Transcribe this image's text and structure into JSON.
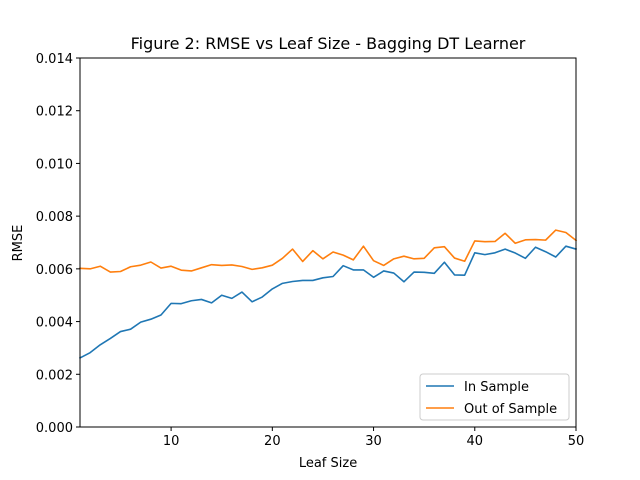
{
  "chart_data": {
    "type": "line",
    "title": "Figure 2: RMSE vs Leaf Size - Bagging DT Learner",
    "xlabel": "Leaf Size",
    "ylabel": "RMSE",
    "xlim": [
      1,
      50
    ],
    "ylim": [
      0,
      0.014
    ],
    "x_ticks": [
      10,
      20,
      30,
      40,
      50
    ],
    "x_tick_labels": [
      "10",
      "20",
      "30",
      "40",
      "50"
    ],
    "y_ticks": [
      0,
      0.002,
      0.004,
      0.006,
      0.008,
      0.01,
      0.012,
      0.014
    ],
    "y_tick_labels": [
      "0.000",
      "0.002",
      "0.004",
      "0.006",
      "0.008",
      "0.010",
      "0.012",
      "0.014"
    ],
    "grid": false,
    "legend_position": "lower-right",
    "x": [
      1,
      2,
      3,
      4,
      5,
      6,
      7,
      8,
      9,
      10,
      11,
      12,
      13,
      14,
      15,
      16,
      17,
      18,
      19,
      20,
      21,
      22,
      23,
      24,
      25,
      26,
      27,
      28,
      29,
      30,
      31,
      32,
      33,
      34,
      35,
      36,
      37,
      38,
      39,
      40,
      41,
      42,
      43,
      44,
      45,
      46,
      47,
      48,
      49,
      50
    ],
    "series": [
      {
        "name": "In Sample",
        "color": "#1f77b4",
        "values": [
          0.00262,
          0.00282,
          0.00312,
          0.00336,
          0.00362,
          0.00371,
          0.00398,
          0.00409,
          0.00425,
          0.00469,
          0.00468,
          0.00479,
          0.00484,
          0.00471,
          0.005,
          0.00488,
          0.00512,
          0.00475,
          0.00493,
          0.00524,
          0.00545,
          0.00552,
          0.00556,
          0.00556,
          0.00566,
          0.00571,
          0.00612,
          0.00596,
          0.00596,
          0.00568,
          0.00592,
          0.00584,
          0.00551,
          0.00588,
          0.00587,
          0.00583,
          0.00625,
          0.00577,
          0.00576,
          0.00661,
          0.00654,
          0.00661,
          0.00675,
          0.0066,
          0.0064,
          0.00682,
          0.00665,
          0.00645,
          0.00686,
          0.00675
        ]
      },
      {
        "name": "Out of Sample",
        "color": "#ff7f0e",
        "values": [
          0.00602,
          0.006,
          0.0061,
          0.00588,
          0.0059,
          0.00608,
          0.00614,
          0.00626,
          0.00603,
          0.0061,
          0.00595,
          0.00592,
          0.00604,
          0.00616,
          0.00613,
          0.00615,
          0.00609,
          0.00598,
          0.00604,
          0.00614,
          0.0064,
          0.00675,
          0.00628,
          0.00669,
          0.00638,
          0.00664,
          0.00652,
          0.00634,
          0.00686,
          0.00631,
          0.00613,
          0.00638,
          0.00648,
          0.00638,
          0.0064,
          0.0068,
          0.00684,
          0.00641,
          0.00629,
          0.00706,
          0.00703,
          0.00704,
          0.00735,
          0.00697,
          0.0071,
          0.00711,
          0.00709,
          0.00747,
          0.00738,
          0.00708
        ]
      }
    ]
  }
}
